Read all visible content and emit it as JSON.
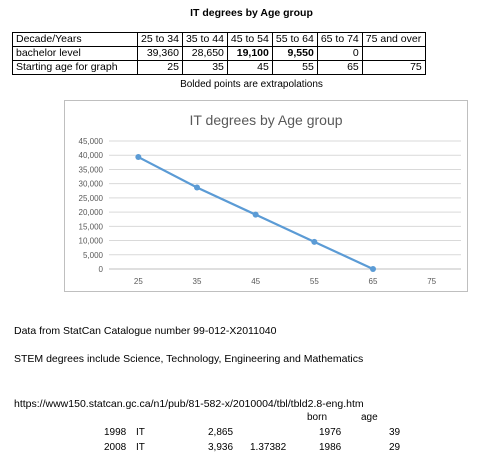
{
  "heading": "IT degrees by Age group",
  "table": {
    "rows": [
      [
        "Decade/Years",
        "25 to 34",
        "35 to 44",
        "45 to 54",
        "55 to 64",
        "65 to 74",
        "75 and over"
      ],
      [
        "bachelor level",
        "39,360",
        "28,650",
        "19,100",
        "9,550",
        "0",
        ""
      ],
      [
        "Starting age for graph",
        "25",
        "35",
        "45",
        "55",
        "65",
        "75"
      ]
    ]
  },
  "note": "Bolded points are extrapolations",
  "chart_data": {
    "type": "line",
    "title": "IT degrees by Age group",
    "x": [
      25,
      35,
      45,
      55,
      65
    ],
    "x_ticks": [
      "25",
      "35",
      "45",
      "55",
      "65",
      "75"
    ],
    "series": [
      {
        "values": [
          39360,
          28650,
          19100,
          9550,
          0
        ],
        "color": "#5b9bd5"
      }
    ],
    "ylim": [
      0,
      45000
    ],
    "y_ticks": [
      "0",
      "5,000",
      "10,000",
      "15,000",
      "20,000",
      "25,000",
      "30,000",
      "35,000",
      "40,000",
      "45,000"
    ],
    "grid": true,
    "legend": "none"
  },
  "source": "Data from StatCan Catalogue number 99-012-X2011040",
  "stem": "STEM degrees include Science, Technology, Engineering and Mathematics",
  "url": "https://www150.statcan.gc.ca/n1/pub/81-582-x/2010004/tbl/tbld2.8-eng.htm",
  "lower_table": {
    "headers": {
      "born": "born",
      "age": "age"
    },
    "rows": [
      {
        "year": "1998",
        "label": "IT",
        "count": "2,865",
        "ratio": "",
        "born": "1976",
        "age": "39"
      },
      {
        "year": "2008",
        "label": "IT",
        "count": "3,936",
        "ratio": "1.37382",
        "born": "1986",
        "age": "29"
      }
    ]
  }
}
